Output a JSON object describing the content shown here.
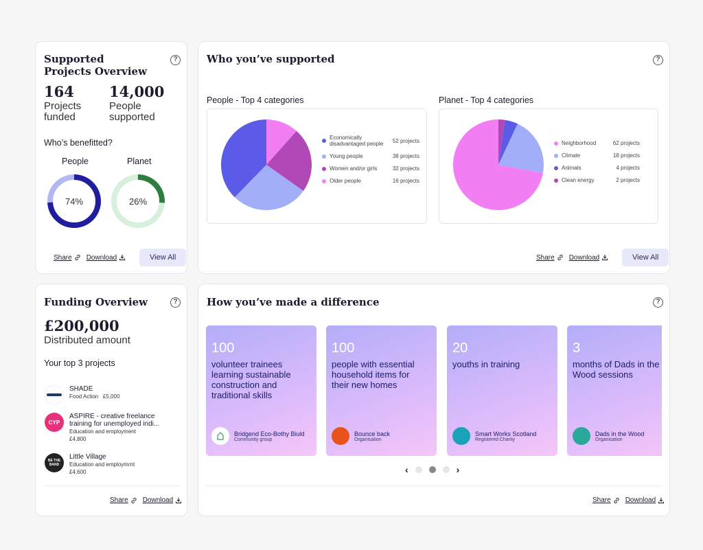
{
  "supported_overview": {
    "title": "Supported Projects Overview",
    "projects_funded_value": "164",
    "projects_funded_label": "Projects funded",
    "people_supported_value": "14,000",
    "people_supported_label": "People supported",
    "benefitted_heading": "Who’s benefitted?",
    "people_label": "People",
    "people_percent": "74%",
    "people_fraction": 0.74,
    "planet_label": "Planet",
    "planet_percent": "26%",
    "planet_fraction": 0.26,
    "share": "Share",
    "download": "Download",
    "view_all": "View All"
  },
  "who_supported": {
    "title": "Who you’ve supported",
    "share": "Share",
    "download": "Download",
    "view_all": "View All"
  },
  "chart_data": [
    {
      "type": "pie",
      "title": "People - Top 4 categories",
      "categories": [
        "Economically disadvantaged people",
        "Young people",
        "Women and/or girls",
        "Older people"
      ],
      "values": [
        52,
        38,
        32,
        16
      ],
      "value_labels": [
        "52 projects",
        "38 projects",
        "32 projects",
        "16 projects"
      ],
      "colors": [
        "#5b5be8",
        "#a3aef9",
        "#b048b5",
        "#f27ef4"
      ]
    },
    {
      "type": "pie",
      "title": "Planet - Top 4 categories",
      "categories": [
        "Neighborhood",
        "Climate",
        "Animals",
        "Clean energy"
      ],
      "values": [
        62,
        18,
        4,
        2
      ],
      "value_labels": [
        "62 projects",
        "18 projects",
        "4 projects",
        "2 projects"
      ],
      "colors": [
        "#f27ef4",
        "#a3aef9",
        "#5b5be8",
        "#b048b5"
      ]
    }
  ],
  "funding": {
    "title": "Funding Overview",
    "amount": "£200,000",
    "amount_label": "Distributed amount",
    "top_heading": "Your top 3 projects",
    "projects": [
      {
        "name": "SHADE",
        "info1": "Food Action   £5,000",
        "info2": ""
      },
      {
        "name": "ASPIRE - creative freelance",
        "name2": "training for unemployed indi...",
        "info1": "Education and employment",
        "info2": "£4,800"
      },
      {
        "name": "Little Village",
        "info1": "Education and employmrnt",
        "info2": "£4,600"
      }
    ],
    "logo_texts": [
      "CYP",
      "BE THE BAND"
    ],
    "share": "Share",
    "download": "Download"
  },
  "difference": {
    "title": "How you’ve made a difference",
    "cards": [
      {
        "number": "100",
        "lines": [
          "volunteer trainees",
          "learning sustainable",
          "construction and",
          "traditional skills"
        ],
        "org": "Bridgend Eco-Bothy Biuld",
        "type": "Community group",
        "logo_color": "#ffffff"
      },
      {
        "number": "100",
        "lines": [
          "people with essential",
          "household items for",
          "their new homes"
        ],
        "org": "Bounce back",
        "type": "Organisation",
        "logo_color": "#e8531c"
      },
      {
        "number": "20",
        "lines": [
          "youths in training"
        ],
        "org": "Smart Works Scotland",
        "type": "Registered Charity",
        "logo_color": "#1aa3b8"
      },
      {
        "number": "3",
        "lines": [
          "months of Dads in the",
          "Wood sessions"
        ],
        "org": "Dads in the Wood",
        "type": "Organisation",
        "logo_color": "#2aa89a"
      }
    ],
    "share": "Share",
    "download": "Download"
  }
}
